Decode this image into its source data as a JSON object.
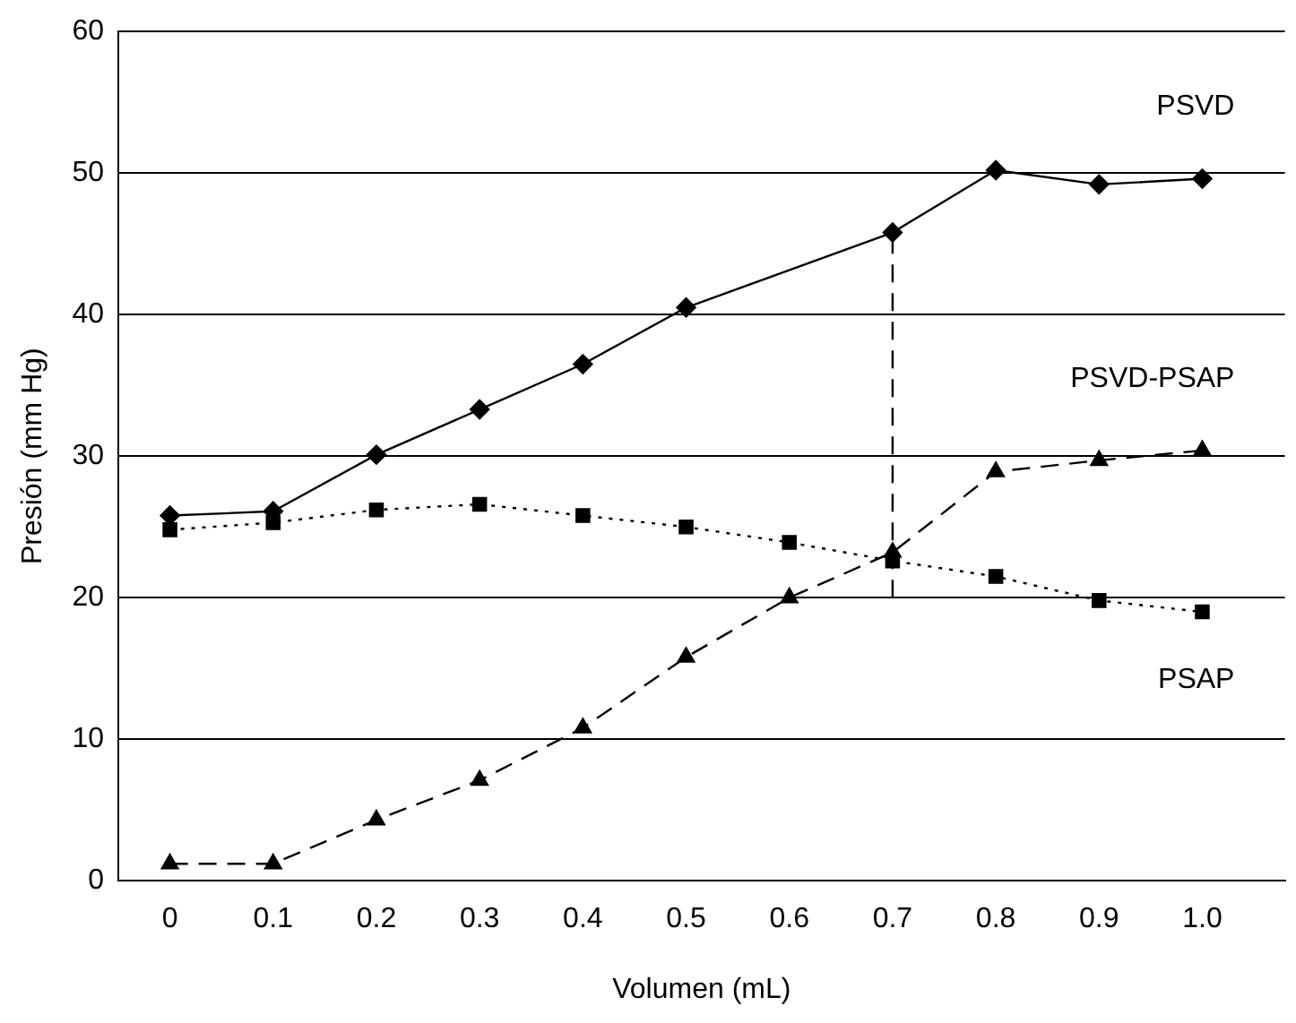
{
  "chart_data": {
    "type": "line",
    "xlabel": "Volumen (mL)",
    "ylabel": "Presión (mm Hg)",
    "xlim": [
      -0.05,
      1.08
    ],
    "xticks": [
      0,
      0.1,
      0.2,
      0.3,
      0.4,
      0.5,
      0.6,
      0.7,
      0.8,
      0.9,
      {
        "value": 1,
        "label": "1.0"
      }
    ],
    "ylim": [
      0,
      60
    ],
    "yticks": [
      0,
      10,
      20,
      30,
      40,
      50,
      60
    ],
    "grid": "y",
    "legend": false,
    "series": [
      {
        "name": "PSVD",
        "color": "#000000",
        "marker": "diamond",
        "line_style": "solid",
        "x": [
          0,
          0.1,
          0.2,
          0.3,
          0.4,
          0.5,
          0.7,
          0.8,
          0.9,
          1.0
        ],
        "values": [
          25.8,
          26.1,
          30.1,
          33.3,
          36.5,
          40.5,
          45.8,
          50.2,
          49.2,
          49.6
        ]
      },
      {
        "name": "PSAP",
        "color": "#000000",
        "marker": "square",
        "line_style": "dotted",
        "x": [
          0,
          0.1,
          0.2,
          0.3,
          0.4,
          0.5,
          0.6,
          0.7,
          0.8,
          0.9,
          1.0
        ],
        "values": [
          24.8,
          25.3,
          26.2,
          26.6,
          25.8,
          25.0,
          23.9,
          22.6,
          21.5,
          19.8,
          19.0
        ]
      },
      {
        "name": "PSVD-PSAP",
        "color": "#000000",
        "marker": "triangle",
        "line_style": "dashed",
        "x": [
          0,
          0.1,
          0.2,
          0.3,
          0.4,
          0.5,
          0.6,
          0.7,
          0.8,
          0.9,
          1.0
        ],
        "values": [
          1.2,
          1.2,
          4.3,
          7.1,
          10.8,
          15.8,
          20.0,
          23.2,
          28.9,
          29.7,
          30.4
        ]
      },
      {
        "color": "#000000",
        "marker": "none",
        "line_style": "dashed",
        "x": [
          0.7,
          0.7
        ],
        "values": [
          20,
          45.8
        ]
      }
    ]
  }
}
